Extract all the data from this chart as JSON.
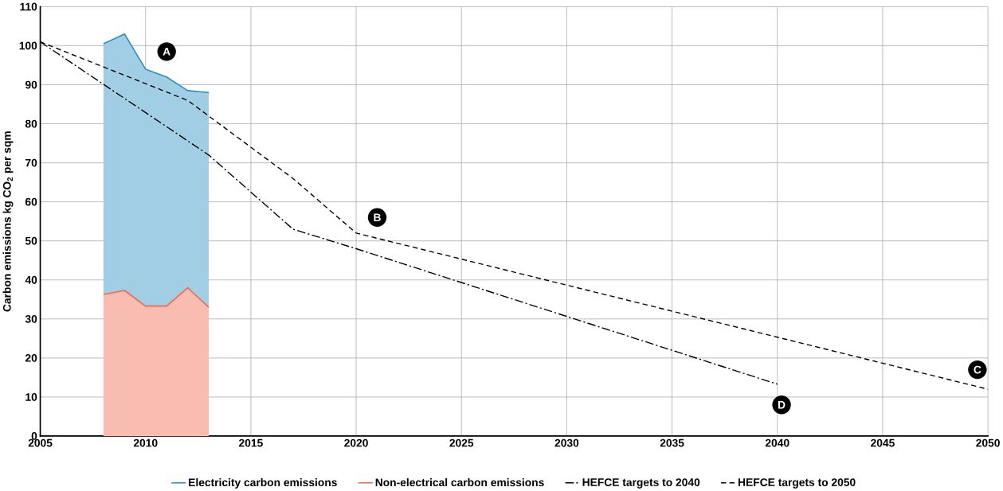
{
  "chart_data": {
    "type": "line",
    "ylabel": "Carbon emissions kg CO$_{2}$ per sqm",
    "xlim": [
      2005,
      2050
    ],
    "ylim": [
      0,
      110
    ],
    "xticks": [
      2005,
      2010,
      2015,
      2020,
      2025,
      2030,
      2035,
      2040,
      2045,
      2050
    ],
    "yticks": [
      0,
      10,
      20,
      30,
      40,
      50,
      60,
      70,
      80,
      90,
      100,
      110
    ],
    "grid": true,
    "legend": "bottom",
    "stacked": true,
    "series": [
      {
        "name": "Non-electrical  carbon emissions",
        "type": "area",
        "color": "#ef6a4f",
        "x": [
          2008,
          2009,
          2010,
          2011,
          2012,
          2013
        ],
        "values": [
          36.3,
          37.3,
          33.3,
          33.3,
          38,
          33
        ]
      },
      {
        "name": "Electricity carbon emissions",
        "type": "area",
        "color": "#2f8fc6",
        "x": [
          2008,
          2009,
          2010,
          2011,
          2012,
          2013
        ],
        "values": [
          64.2,
          65.7,
          60.7,
          58.7,
          50.5,
          55
        ]
      },
      {
        "name": "HEFCE targets to 2040",
        "type": "line",
        "line_style": "dashdot",
        "color": "#000000",
        "x": [
          2005,
          2013,
          2017,
          2020,
          2040
        ],
        "values": [
          101,
          72,
          53,
          48,
          13.3
        ]
      },
      {
        "name": "HEFCE targets to 2050",
        "type": "line",
        "line_style": "dashed",
        "color": "#000000",
        "x": [
          2005,
          2012,
          2017,
          2020,
          2050
        ],
        "values": [
          101,
          86,
          66,
          52,
          12
        ]
      }
    ],
    "annotations": [
      {
        "text": "A",
        "x": 2011,
        "y": 98.5
      },
      {
        "text": "B",
        "x": 2021,
        "y": 56
      },
      {
        "text": "C",
        "x": 2049.5,
        "y": 17
      },
      {
        "text": "D",
        "x": 2040.2,
        "y": 8
      }
    ]
  }
}
